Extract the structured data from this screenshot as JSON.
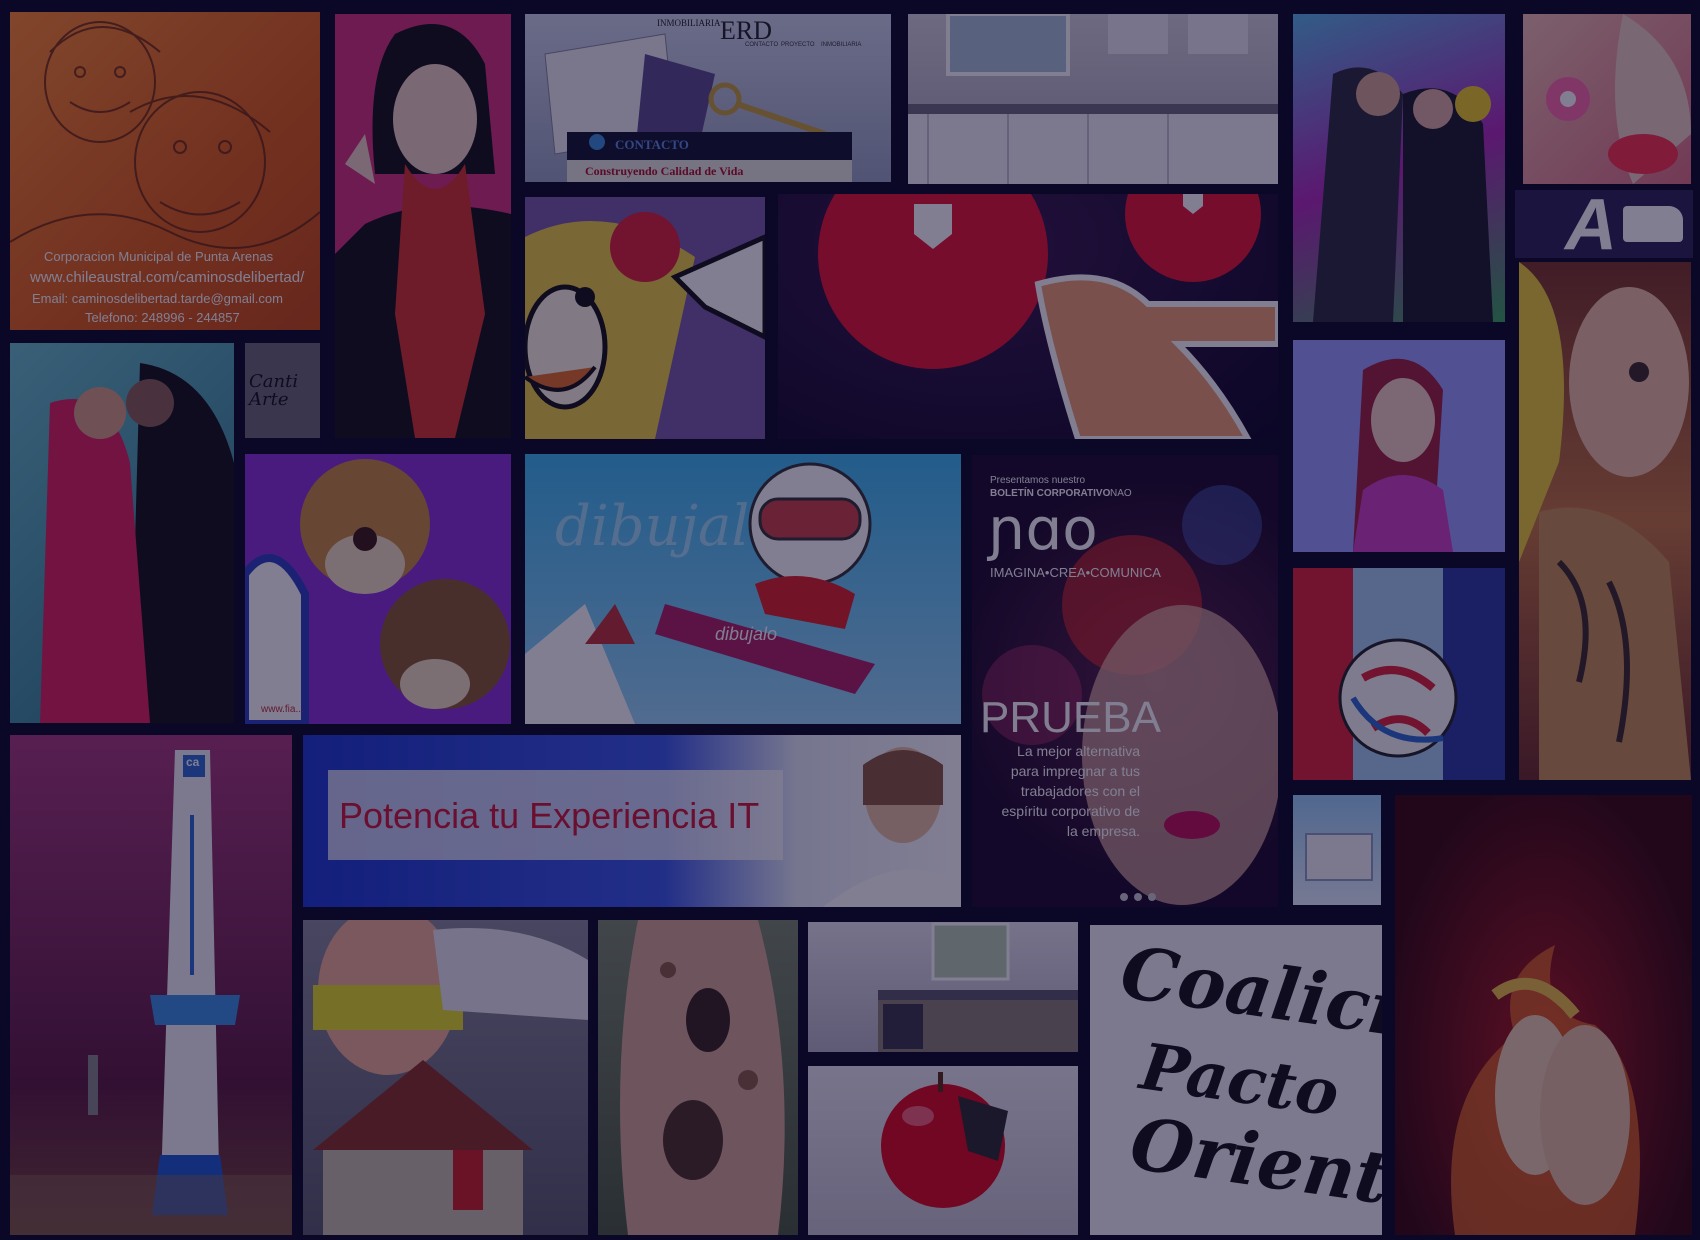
{
  "colors": {
    "background": "#0b0726",
    "overlay": "rgba(14,8,46,0.52)",
    "accent_red": "#b0182d"
  },
  "tiles": {
    "chileaustral": {
      "line1": "Corporacion Municipal de Punta Arenas",
      "line2": "www.chileaustral.com/caminosdelibertad/",
      "line3": "Email: caminosdelibertad.tarde@gmail.com",
      "line4": "Telefono: 248996 - 244857"
    },
    "inmobiliaria": {
      "small": "INMOBILIARIA",
      "brand": "ERD",
      "nav": [
        "CONTACTO",
        "PROYECTO",
        "INMOBILIARIA"
      ],
      "contact": "CONTACTO",
      "tagline": "Construyendo Calidad de Vida"
    },
    "logo_a": {
      "text": "A"
    },
    "snow": {
      "watermark": "dibujalo",
      "board": "dibujalo"
    },
    "mascot": {
      "url": "www.fia..."
    },
    "nao": {
      "presentamos": "Presentamos nuestro",
      "boletin": "BOLETÍN CORPORATIVO",
      "nao_small": "NAO",
      "logo": "ɲɑo",
      "tagline": "IMAGINA•CREA•COMUNICA",
      "headline": "PRUEBA",
      "body1": "La mejor alternativa",
      "body2": "para impregnar a tus",
      "body3": "trabajadores con el",
      "body4": "espíritu corporativo de",
      "body5": "la empresa."
    },
    "potencia": {
      "headline": "Potencia tu Experiencia IT"
    },
    "calligraphy": {
      "line1": "Coalicion",
      "line2": "Pacto",
      "line3": "Oriente"
    },
    "tower": {
      "logo": "ca"
    },
    "cantarte": {
      "text": "Canti Arte"
    }
  }
}
